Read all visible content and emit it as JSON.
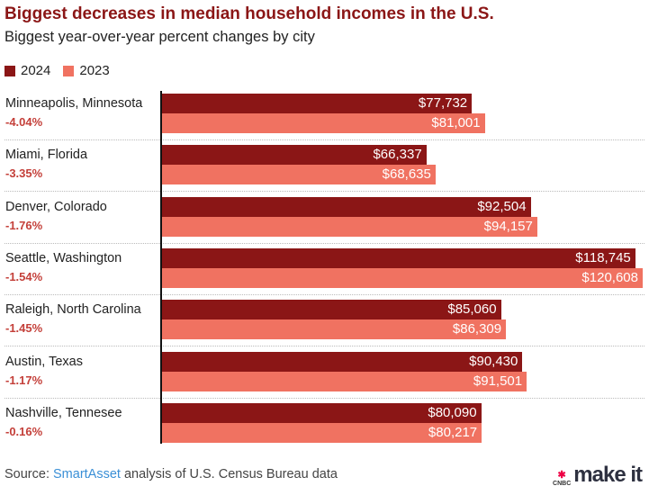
{
  "chart_data": {
    "type": "bar",
    "orientation": "horizontal",
    "title": "Biggest decreases in median household incomes in the U.S.",
    "subtitle": "Biggest year-over-year percent changes by city",
    "legend": [
      {
        "name": "2024",
        "color": "#8b1616"
      },
      {
        "name": "2023",
        "color": "#f07261"
      }
    ],
    "legend_position": "top-left",
    "xlim": [
      0,
      121000
    ],
    "categories": [
      "Minneapolis, Minnesota",
      "Miami, Florida",
      "Denver, Colorado",
      "Seattle, Washington",
      "Raleigh, North Carolina",
      "Austin, Texas",
      "Nashville, Tennesee"
    ],
    "changes": [
      "-4.04%",
      "-3.35%",
      "-1.76%",
      "-1.54%",
      "-1.45%",
      "-1.17%",
      "-0.16%"
    ],
    "series": [
      {
        "name": "2024",
        "values": [
          77732,
          66337,
          92504,
          118745,
          85060,
          90430,
          80090
        ],
        "labels": [
          "$77,732",
          "$66,337",
          "$92,504",
          "$118,745",
          "$85,060",
          "$90,430",
          "$80,090"
        ]
      },
      {
        "name": "2023",
        "values": [
          81001,
          68635,
          94157,
          120608,
          86309,
          91501,
          80217
        ],
        "labels": [
          "$81,001",
          "$68,635",
          "$94,157",
          "$120,608",
          "$86,309",
          "$91,501",
          "$80,217"
        ]
      }
    ]
  },
  "footer": {
    "source_prefix": "Source: ",
    "source_link": "SmartAsset",
    "source_suffix": " analysis of U.S. Census Bureau data",
    "logo_network": "CNBC",
    "logo_brand": "make it"
  }
}
